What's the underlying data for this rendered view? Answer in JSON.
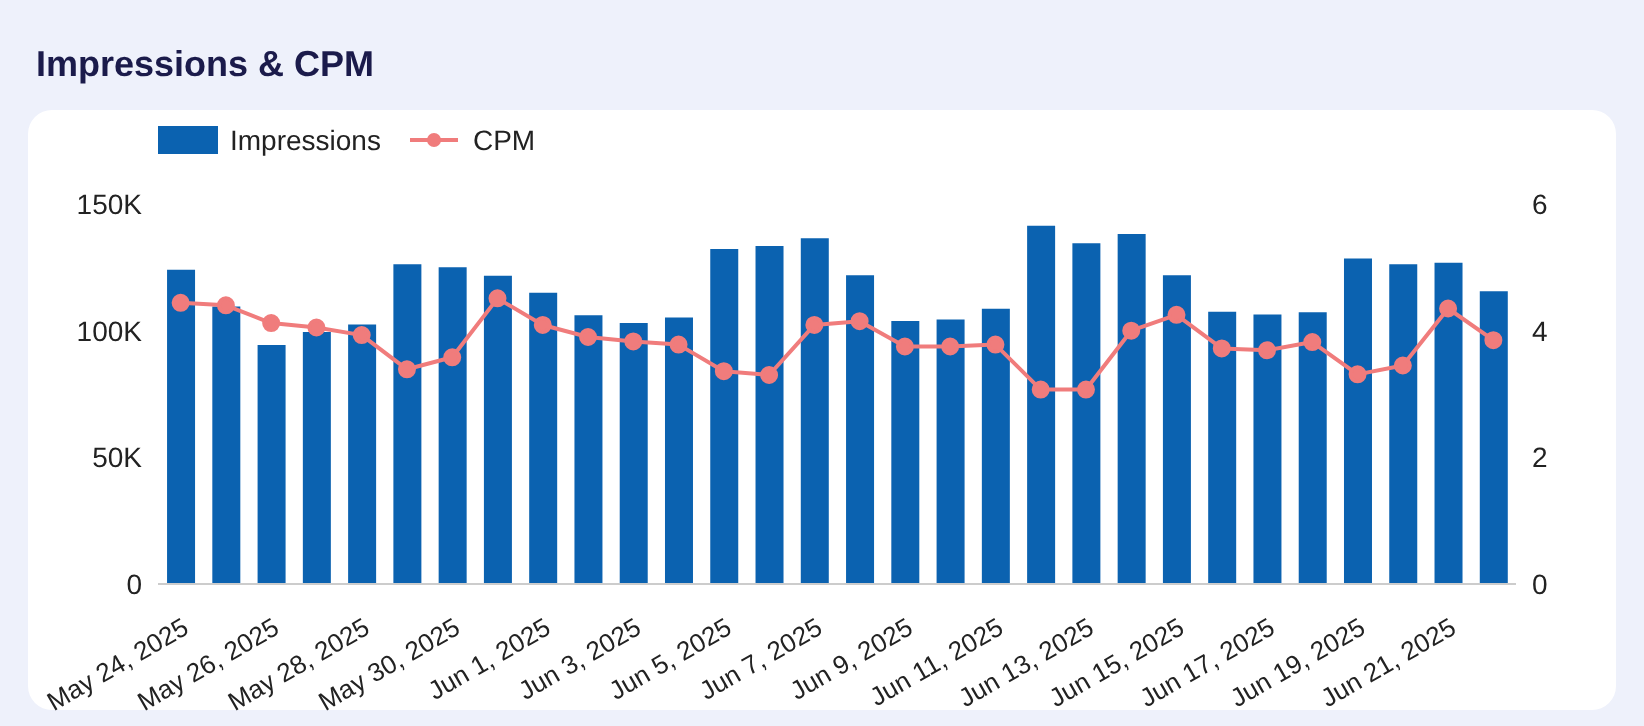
{
  "chart_data": {
    "type": "bar",
    "title": "Impressions & CPM",
    "categories": [
      "May 24, 2025",
      null,
      "May 26, 2025",
      null,
      "May 28, 2025",
      null,
      "May 30, 2025",
      null,
      "Jun 1, 2025",
      null,
      "Jun 3, 2025",
      null,
      "Jun 5, 2025",
      null,
      "Jun 7, 2025",
      null,
      "Jun 9, 2025",
      null,
      "Jun 11, 2025",
      null,
      "Jun 13, 2025",
      null,
      "Jun 15, 2025",
      null,
      "Jun 17, 2025",
      null,
      "Jun 19, 2025",
      null,
      "Jun 21, 2025",
      null
    ],
    "series": [
      {
        "name": "Impressions",
        "color": "#0b62b0",
        "values": [
          124000,
          109500,
          94300,
          99500,
          102400,
          126200,
          125000,
          121700,
          115000,
          106100,
          103000,
          105200,
          132200,
          133400,
          136500,
          121900,
          103800,
          104400,
          108700,
          141400,
          134500,
          138200,
          121900,
          107500,
          106400,
          107300,
          128500,
          126200,
          126800,
          115600
        ]
      },
      {
        "name": "CPM",
        "type": "line",
        "axis": "y2",
        "color": "#f07c7c",
        "values": [
          4.44,
          4.4,
          4.12,
          4.05,
          3.93,
          3.39,
          3.58,
          4.51,
          4.09,
          3.9,
          3.83,
          3.78,
          3.36,
          3.3,
          4.09,
          4.15,
          3.75,
          3.75,
          3.78,
          3.07,
          3.07,
          4.0,
          4.25,
          3.72,
          3.69,
          3.82,
          3.31,
          3.45,
          4.35,
          3.85
        ]
      }
    ],
    "ylim": [
      0,
      150000
    ],
    "yticks": [
      {
        "value": 0,
        "label": "0"
      },
      {
        "value": 50000,
        "label": "50K"
      },
      {
        "value": 100000,
        "label": "100K"
      },
      {
        "value": 150000,
        "label": "150K"
      }
    ],
    "y2lim": [
      0,
      6
    ],
    "y2ticks": [
      0,
      2,
      4,
      6
    ],
    "marker": "circle",
    "line_style": "solid",
    "grid": false,
    "legend": "top left"
  }
}
